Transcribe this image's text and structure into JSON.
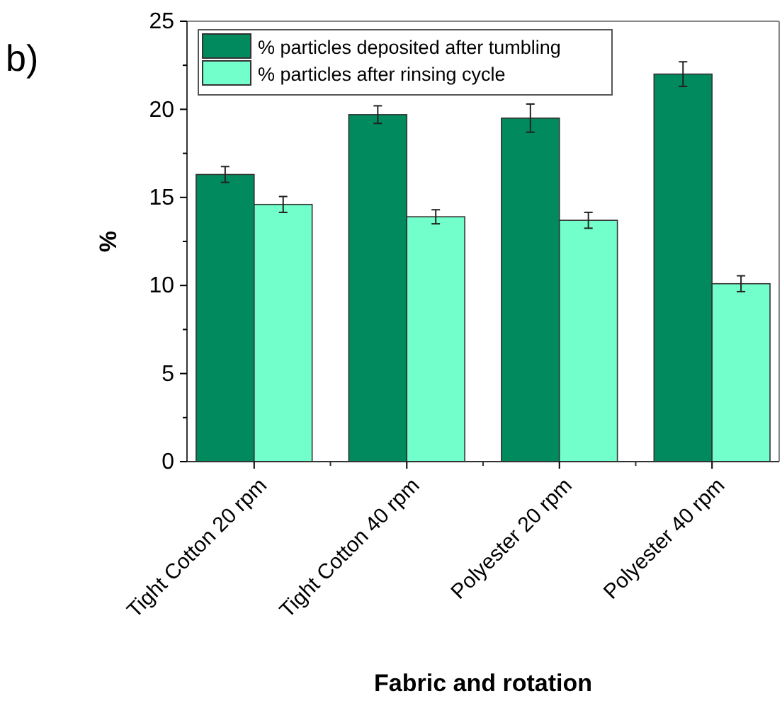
{
  "chart_data": {
    "type": "bar",
    "ylabel": "%",
    "xlabel": "Fabric and rotation",
    "annotations": [
      "b)"
    ],
    "categories": [
      "Tight Cotton 20 rpm",
      "Tight Cotton 40 rpm",
      "Polyester 20 rpm",
      "Polyester 40 rpm"
    ],
    "series": [
      {
        "name": "% particles deposited after tumbling",
        "color": "#008a5e",
        "values": [
          16.3,
          19.7,
          19.5,
          22.0
        ],
        "errors": [
          0.45,
          0.5,
          0.8,
          0.7
        ]
      },
      {
        "name": "% particles after rinsing cycle",
        "color": "#73ffcc",
        "values": [
          14.6,
          13.9,
          13.7,
          10.1
        ],
        "errors": [
          0.45,
          0.4,
          0.45,
          0.45
        ]
      }
    ],
    "ylim": [
      0,
      25
    ],
    "yticks": [
      0,
      {
        "value": 2.5,
        "label": null
      },
      5,
      {
        "value": 7.5,
        "label": null
      },
      10,
      {
        "value": 12.5,
        "label": null
      },
      15,
      {
        "value": 17.5,
        "label": null
      },
      20,
      {
        "value": 22.5,
        "label": null
      },
      25
    ],
    "legend": "top left",
    "grid": false
  }
}
